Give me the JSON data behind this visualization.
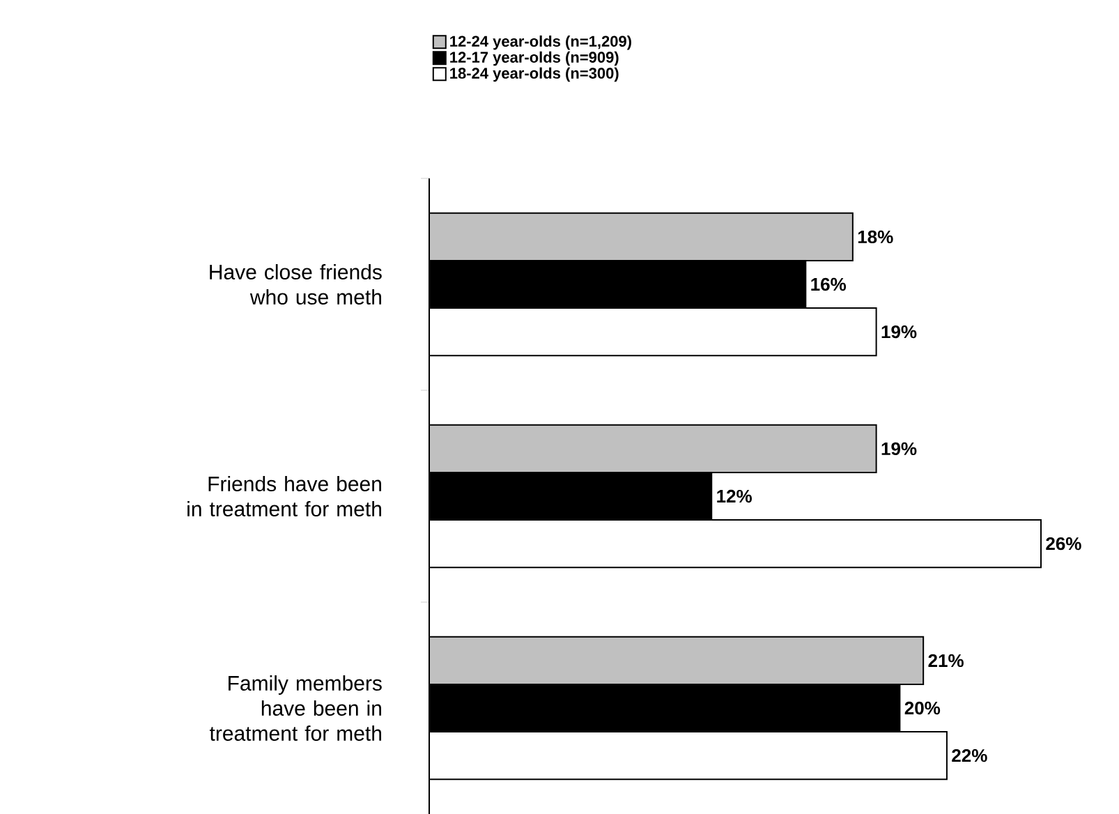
{
  "chart_data": {
    "type": "bar",
    "orientation": "horizontal",
    "legend": "top",
    "categories": [
      "Have close friends who use meth",
      "Friends have been in treatment for meth",
      "Family members have been in treatment for meth"
    ],
    "series": [
      {
        "name": "12-24 year-olds (n=1,209)",
        "color": "#c0c0c0",
        "values": [
          18,
          19,
          21
        ],
        "value_labels": [
          "18%",
          "19%",
          "21%"
        ]
      },
      {
        "name": "12-17 year-olds (n=909)",
        "color": "#000000",
        "values": [
          16,
          12,
          20
        ],
        "value_labels": [
          "16%",
          "12%",
          "20%"
        ]
      },
      {
        "name": "18-24 year-olds (n=300)",
        "color": "#ffffff",
        "values": [
          19,
          26,
          22
        ],
        "value_labels": [
          "19%",
          "26%",
          "22%"
        ]
      }
    ]
  }
}
